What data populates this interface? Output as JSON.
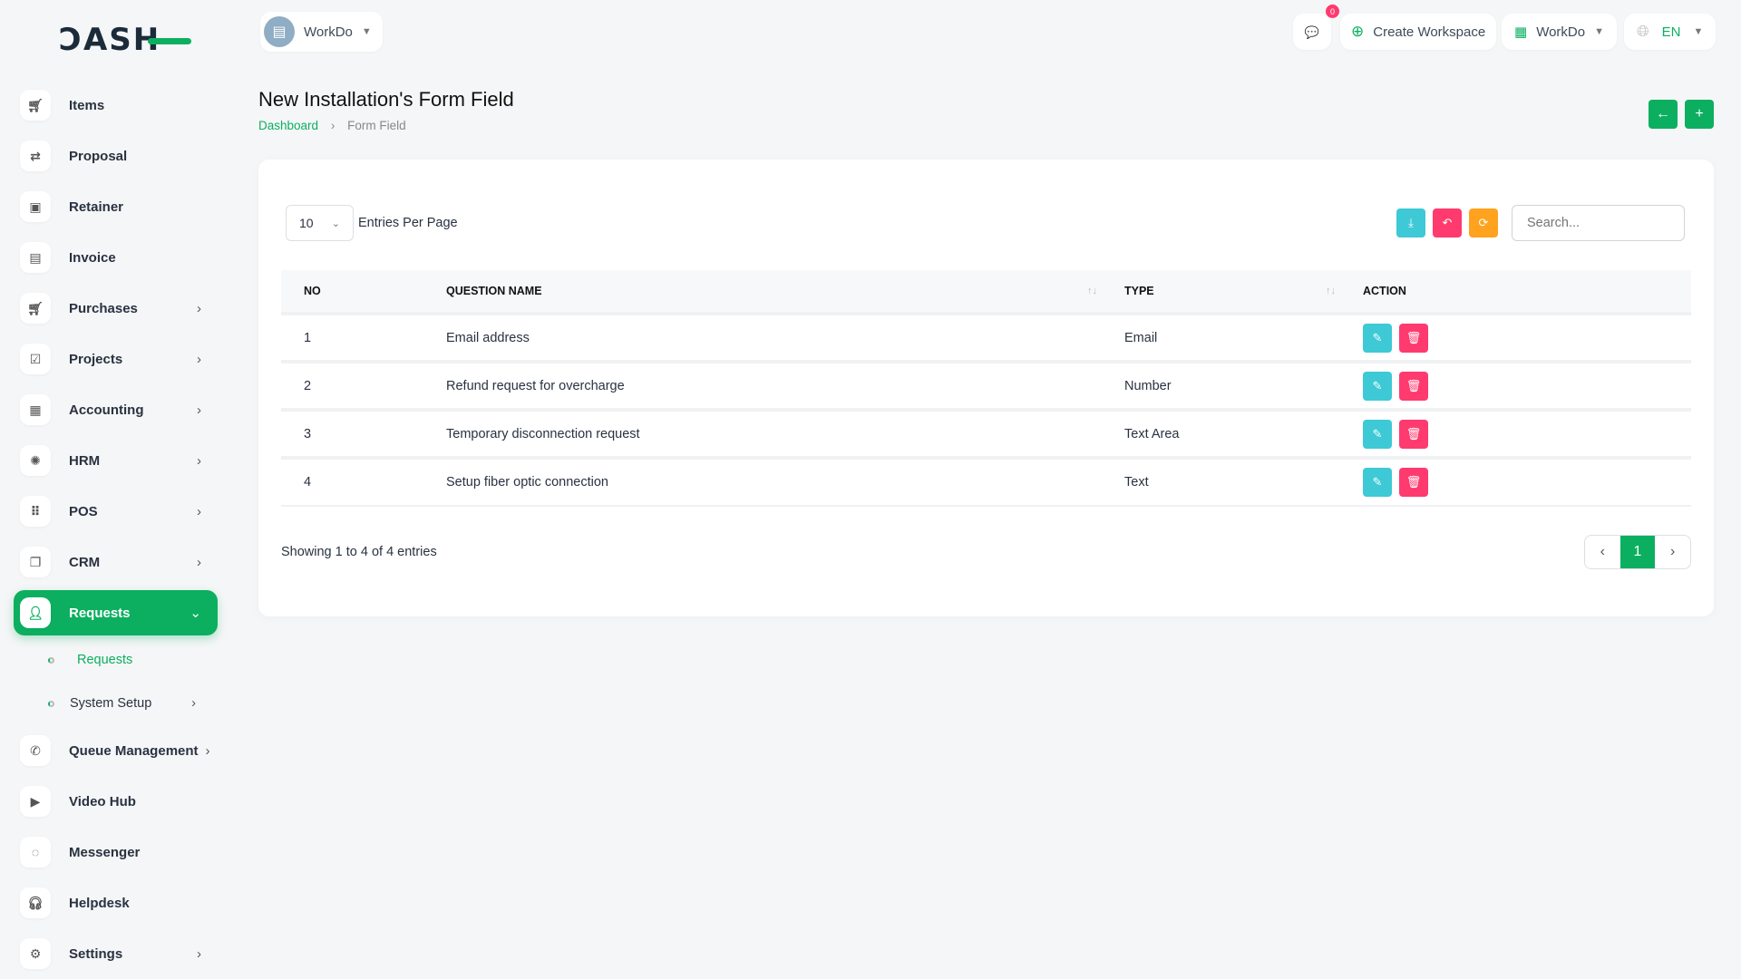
{
  "logo": "DASH",
  "header": {
    "workspace": "WorkDo",
    "chat_badge": "0",
    "create_workspace": "Create Workspace",
    "workspace_switch": "WorkDo",
    "language": "EN"
  },
  "sidebar": {
    "items": [
      {
        "label": "Items",
        "icon": "cart-icon",
        "arrow": false
      },
      {
        "label": "Proposal",
        "icon": "proposal-icon",
        "arrow": false
      },
      {
        "label": "Retainer",
        "icon": "retainer-icon",
        "arrow": false
      },
      {
        "label": "Invoice",
        "icon": "invoice-icon",
        "arrow": false
      },
      {
        "label": "Purchases",
        "icon": "cart-icon",
        "arrow": true
      },
      {
        "label": "Projects",
        "icon": "check-square-icon",
        "arrow": true
      },
      {
        "label": "Accounting",
        "icon": "grid-icon",
        "arrow": true
      },
      {
        "label": "HRM",
        "icon": "hrm-icon",
        "arrow": true
      },
      {
        "label": "POS",
        "icon": "dots-grid-icon",
        "arrow": true
      },
      {
        "label": "CRM",
        "icon": "crm-icon",
        "arrow": true
      },
      {
        "label": "Requests",
        "icon": "user-plus-icon",
        "arrow": true,
        "active": true
      }
    ],
    "sub_items": [
      {
        "label": "Requests",
        "active": true
      },
      {
        "label": "System Setup",
        "arrow": true
      }
    ],
    "items_after": [
      {
        "label": "Queue Management",
        "icon": "phone-icon",
        "arrow": true
      },
      {
        "label": "Video Hub",
        "icon": "video-icon",
        "arrow": false
      },
      {
        "label": "Messenger",
        "icon": "message-icon",
        "arrow": false
      },
      {
        "label": "Helpdesk",
        "icon": "headset-icon",
        "arrow": false
      },
      {
        "label": "Settings",
        "icon": "gear-icon",
        "arrow": true
      }
    ]
  },
  "page": {
    "title": "New Installation's Form Field",
    "breadcrumb": [
      "Dashboard",
      "Form Field"
    ]
  },
  "table": {
    "entries": "10",
    "entries_label": "Entries Per Page",
    "search_placeholder": "Search...",
    "columns": [
      "NO",
      "QUESTION NAME",
      "TYPE",
      "ACTION"
    ],
    "rows": [
      {
        "no": "1",
        "question": "Email address",
        "type": "Email"
      },
      {
        "no": "2",
        "question": "Refund request for overcharge",
        "type": "Number"
      },
      {
        "no": "3",
        "question": "Temporary disconnection request",
        "type": "Text Area"
      },
      {
        "no": "4",
        "question": "Setup fiber optic connection",
        "type": "Text"
      }
    ],
    "showing": "Showing 1 to 4 of 4 entries",
    "current_page": "1"
  },
  "colors": {
    "primary": "#0caf60",
    "info": "#3ec9d6",
    "danger": "#ff3a6e",
    "warning": "#ffa21d"
  }
}
